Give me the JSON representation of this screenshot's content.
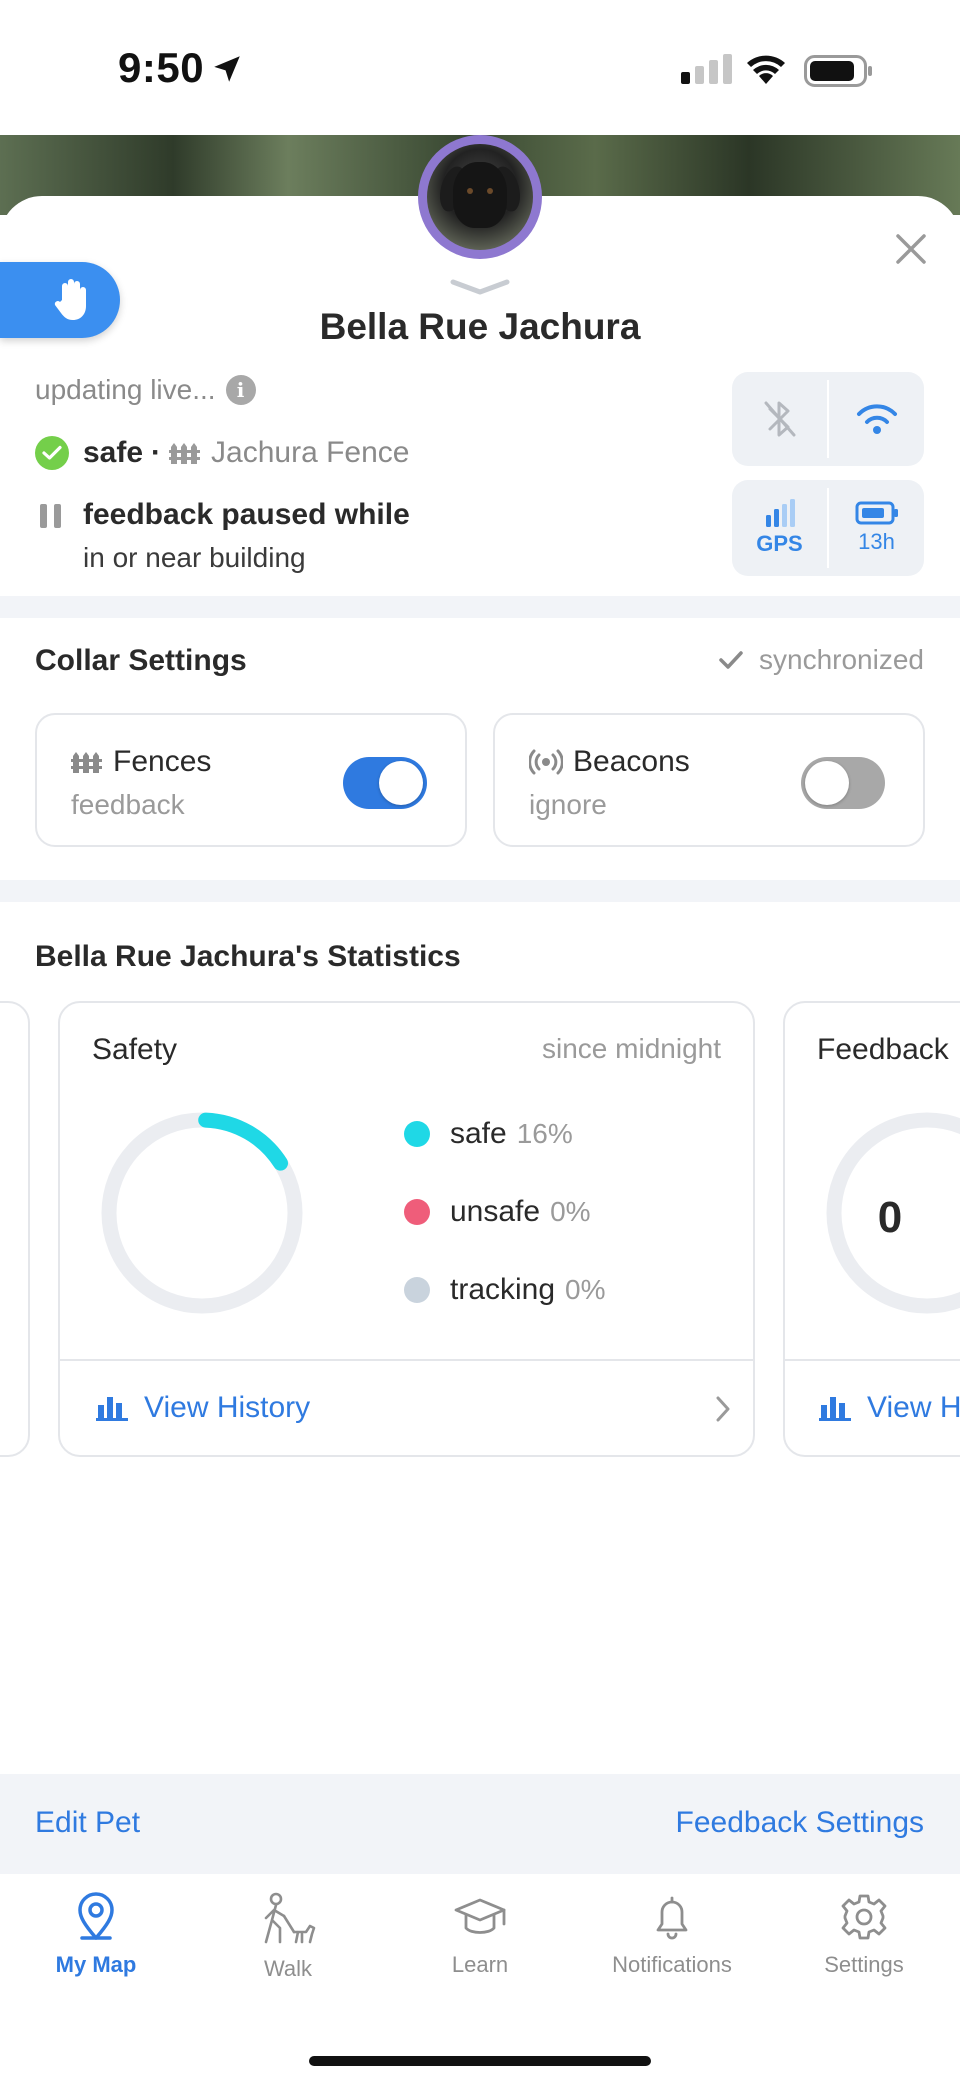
{
  "status_bar": {
    "time": "9:50"
  },
  "pet": {
    "name": "Bella Rue Jachura"
  },
  "status": {
    "updating": "updating live...",
    "safe_label": "safe",
    "separator": "·",
    "fence_name": "Jachura Fence",
    "paused_title": "feedback paused while",
    "paused_sub": "in or near building"
  },
  "connectivity": {
    "gps_label": "GPS",
    "battery_label": "13h"
  },
  "collar_settings": {
    "title": "Collar Settings",
    "sync_label": "synchronized",
    "fences": {
      "title": "Fences",
      "subtitle": "feedback",
      "enabled": true
    },
    "beacons": {
      "title": "Beacons",
      "subtitle": "ignore",
      "enabled": false
    }
  },
  "statistics": {
    "title": "Bella Rue Jachura's Statistics",
    "safety_card": {
      "title": "Safety",
      "since": "since midnight",
      "legend": [
        {
          "label": "safe",
          "value": "16%",
          "color": "#1fd8e6",
          "fraction": 0.16
        },
        {
          "label": "unsafe",
          "value": "0%",
          "color": "#ef5d7a",
          "fraction": 0
        },
        {
          "label": "tracking",
          "value": "0%",
          "color": "#c9d3dd",
          "fraction": 0
        }
      ],
      "view_history": "View History"
    },
    "feedback_card": {
      "title": "Feedback",
      "count": "0",
      "view_history": "View H"
    }
  },
  "bottom_links": {
    "edit_pet": "Edit Pet",
    "feedback_settings": "Feedback Settings"
  },
  "tabs": [
    {
      "label": "My Map",
      "icon": "map-pin-icon",
      "active": true
    },
    {
      "label": "Walk",
      "icon": "walk-icon",
      "active": false
    },
    {
      "label": "Learn",
      "icon": "graduation-cap-icon",
      "active": false
    },
    {
      "label": "Notifications",
      "icon": "bell-icon",
      "active": false
    },
    {
      "label": "Settings",
      "icon": "gear-icon",
      "active": false
    }
  ],
  "colors": {
    "accent": "#2f7ae0",
    "avatar_ring": "#8e78d0",
    "safe_green": "#74cf4a",
    "safe_cyan": "#1fd8e6",
    "unsafe_pink": "#ef5d7a"
  }
}
